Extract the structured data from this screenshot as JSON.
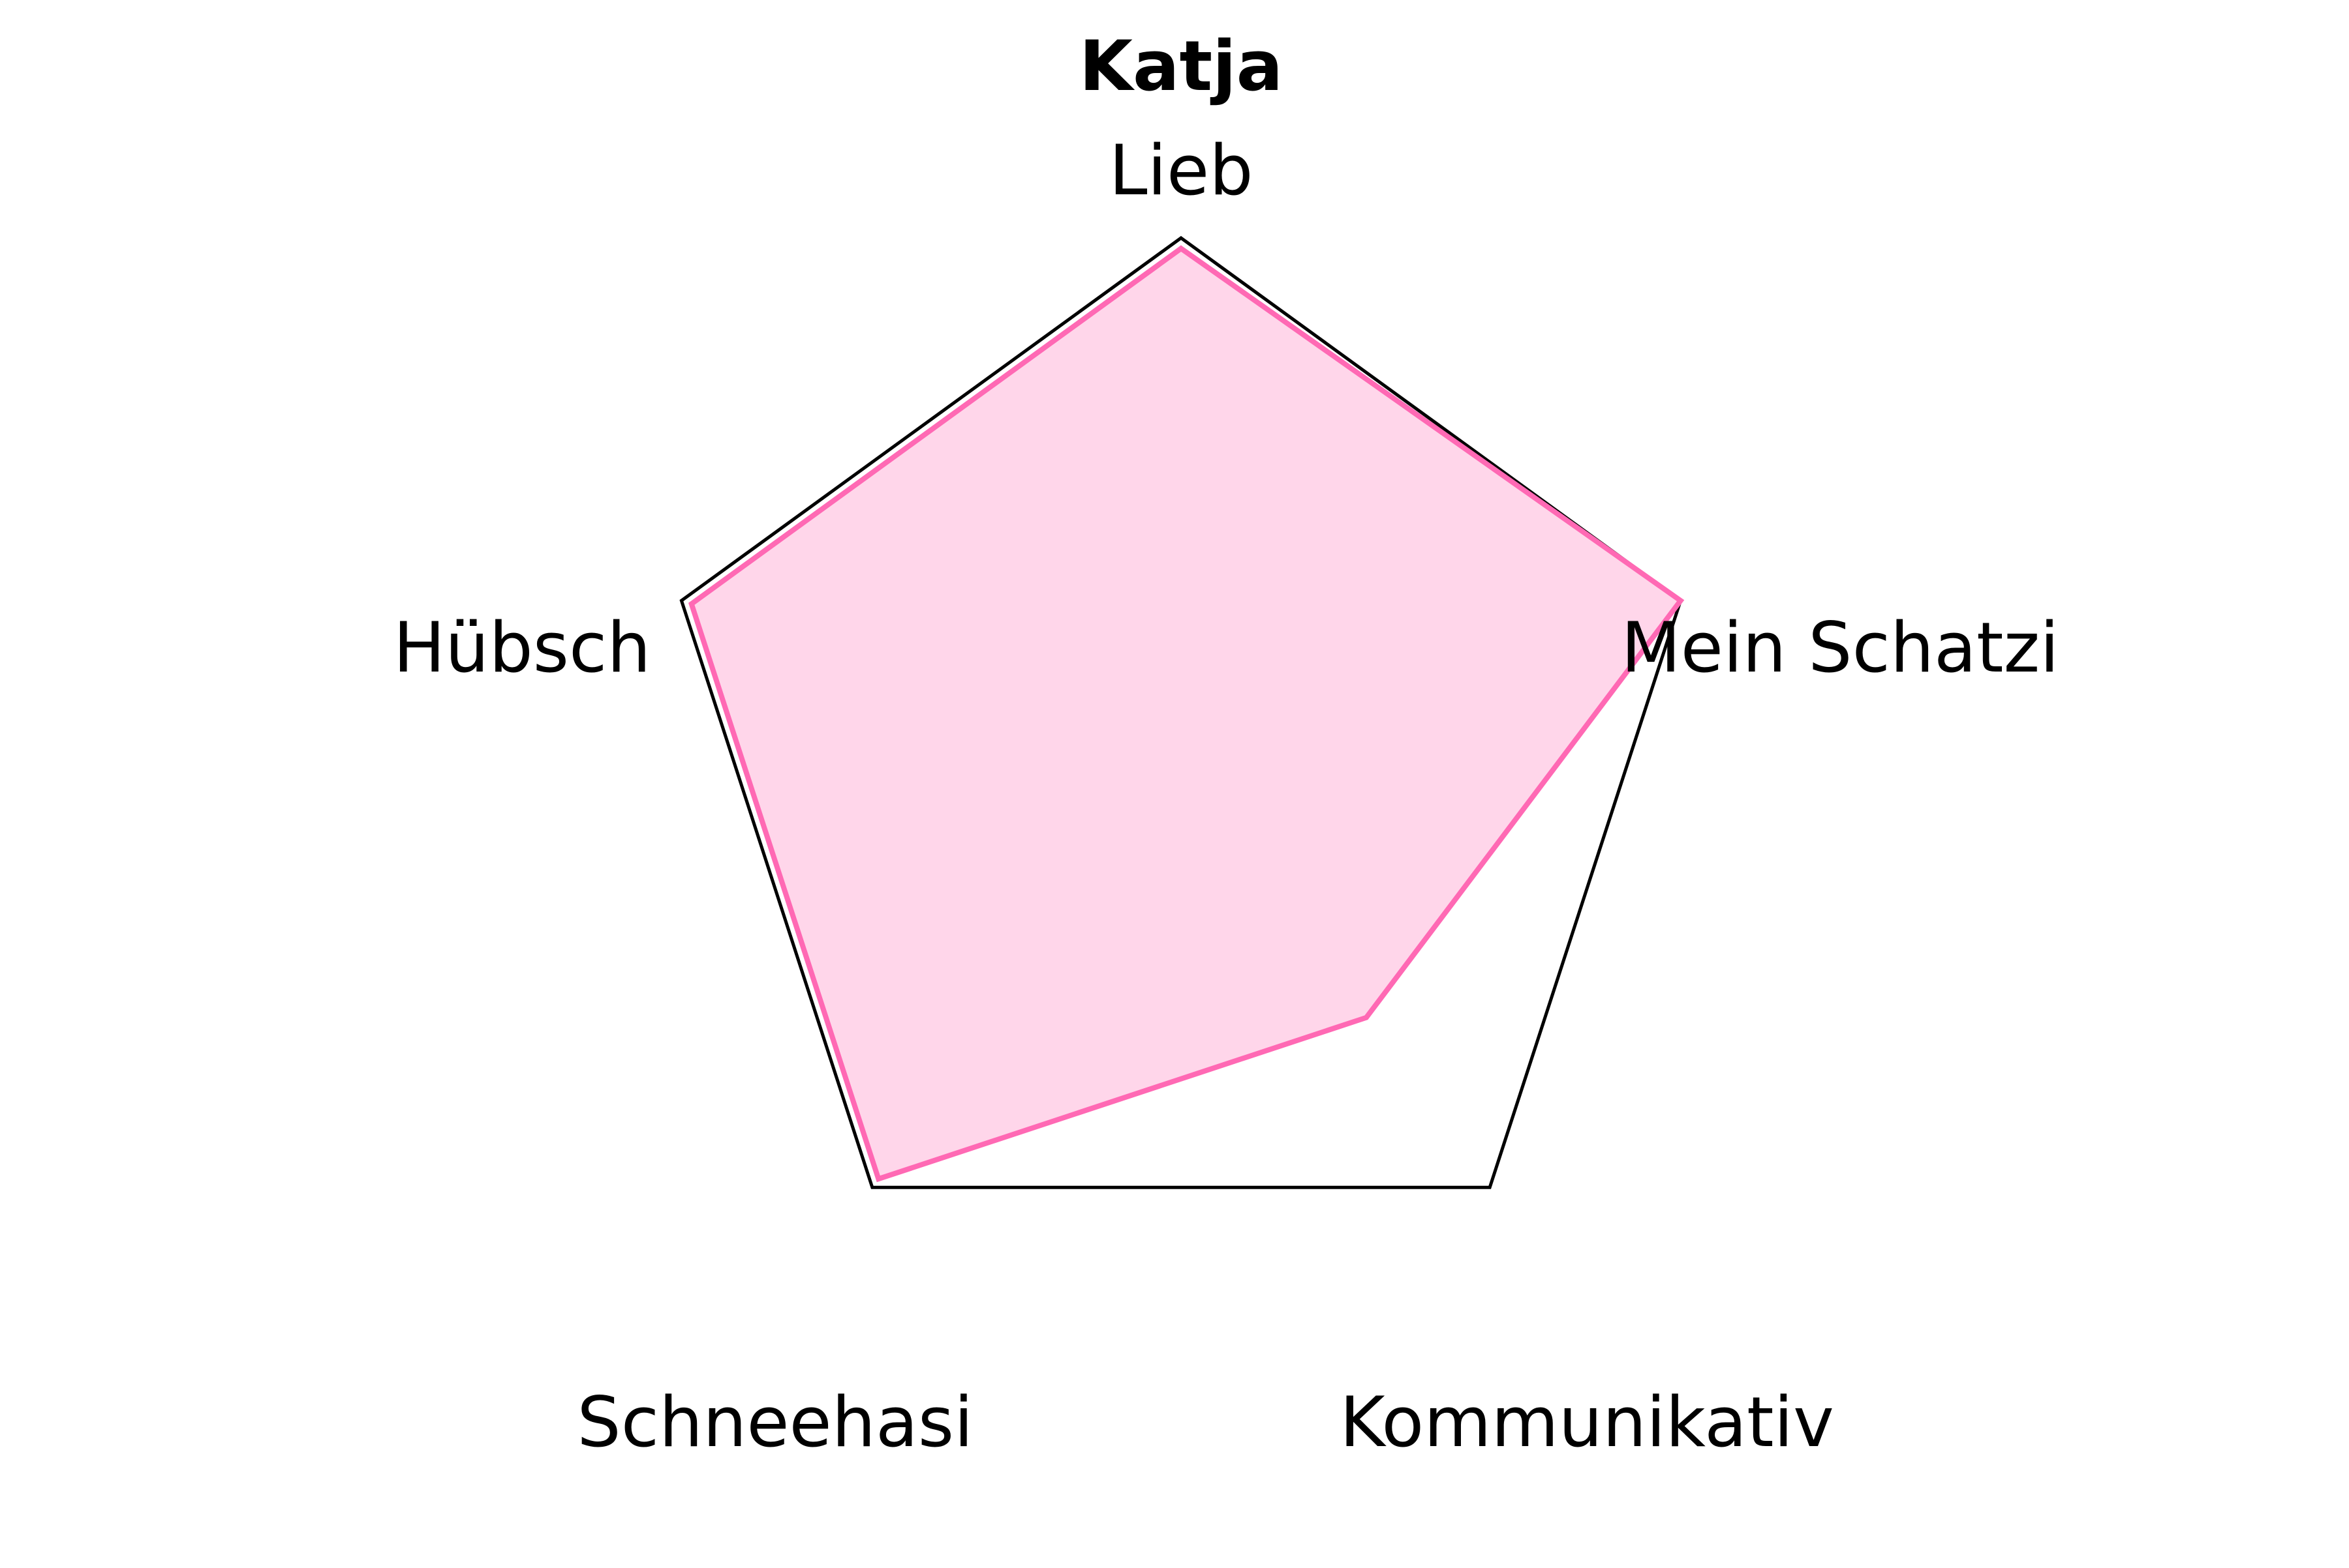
{
  "chart_data": {
    "type": "radar",
    "title": "Katja",
    "categories": [
      "Lieb",
      "Mein Schatzi",
      "Kommunikativ",
      "Schneehasi",
      "Hübsch"
    ],
    "series": [
      {
        "values": [
          0.98,
          1.0,
          0.6,
          0.98,
          0.98
        ]
      }
    ],
    "rlim": [
      0,
      1
    ],
    "grid": false,
    "colors": {
      "series_line": "#ff69b4",
      "series_fill": "#ffd6ea",
      "frame": "#000000"
    }
  }
}
